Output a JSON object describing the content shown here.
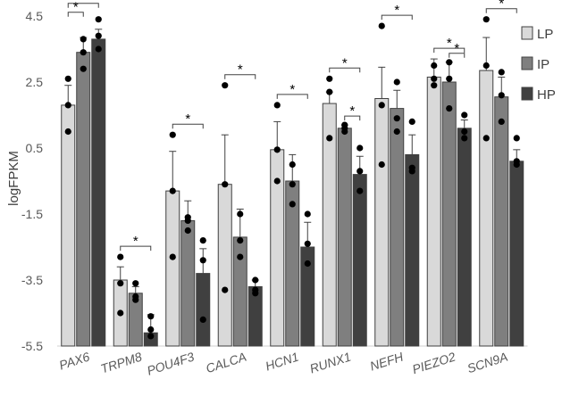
{
  "chart_data": {
    "type": "bar",
    "title": "",
    "xlabel": "",
    "ylabel": "logFPKM",
    "ylim": [
      -5.5,
      4.5
    ],
    "yticks": [
      "4.5",
      "2.5",
      "0.5",
      "-1.5",
      "-3.5",
      "-5.5"
    ],
    "ytick_values": [
      4.5,
      2.5,
      0.5,
      -1.5,
      -3.5,
      -5.5
    ],
    "grid": false,
    "legend_position": "right",
    "categories": [
      "PAX6",
      "TRPM8",
      "POU4F3",
      "CALCA",
      "HCN1",
      "RUNX1",
      "NEFH",
      "PIEZO2",
      "SCN9A"
    ],
    "series": [
      {
        "name": "LP",
        "color": "#d9d9d9",
        "values": [
          1.8,
          -3.5,
          -0.8,
          -0.6,
          0.45,
          1.85,
          2.0,
          2.65,
          2.85
        ],
        "errors": [
          0.6,
          0.4,
          1.2,
          1.5,
          0.85,
          0.35,
          0.95,
          0.55,
          1.0
        ],
        "points": [
          [
            2.6,
            1.8,
            1.0
          ],
          [
            -2.8,
            -3.6,
            -4.5
          ],
          [
            0.9,
            -0.8,
            -2.8
          ],
          [
            2.4,
            -0.6,
            -3.8
          ],
          [
            1.8,
            0.45,
            -0.5
          ],
          [
            2.6,
            2.2,
            0.8
          ],
          [
            4.2,
            1.8,
            0.0
          ],
          [
            3.0,
            2.6,
            2.4
          ],
          [
            4.4,
            3.0,
            0.8
          ]
        ]
      },
      {
        "name": "IP",
        "color": "#7f7f7f",
        "values": [
          3.4,
          -3.9,
          -1.7,
          -2.2,
          -0.5,
          1.1,
          1.7,
          2.5,
          2.05
        ],
        "errors": [
          0.45,
          0.2,
          0.6,
          0.85,
          0.8,
          0.1,
          0.55,
          0.6,
          0.6
        ],
        "points": [
          [
            3.8,
            3.4,
            2.9
          ],
          [
            -3.6,
            -4.0,
            -4.1
          ],
          [
            -1.6,
            -1.7,
            -2.0
          ],
          [
            -1.5,
            -2.8,
            -2.3
          ],
          [
            0.0,
            -1.2,
            -0.6
          ],
          [
            1.2,
            1.1,
            1.0
          ],
          [
            2.5,
            1.4,
            1.0
          ],
          [
            3.1,
            2.6,
            1.7
          ],
          [
            2.8,
            2.1,
            1.3
          ]
        ]
      },
      {
        "name": "HP",
        "color": "#404040",
        "values": [
          3.8,
          -5.1,
          -3.3,
          -3.7,
          -2.5,
          -0.3,
          0.3,
          1.1,
          0.1
        ],
        "errors": [
          0.3,
          0.55,
          0.75,
          0.2,
          0.75,
          0.55,
          0.6,
          0.25,
          0.35
        ],
        "points": [
          [
            4.4,
            3.9,
            3.5
          ],
          [
            -4.6,
            -5.0,
            -5.2
          ],
          [
            -2.3,
            -2.9,
            -4.7
          ],
          [
            -3.5,
            -3.8,
            -3.9
          ],
          [
            -1.5,
            -2.4,
            -3.0
          ],
          [
            0.5,
            -0.2,
            -0.8
          ],
          [
            1.3,
            -0.1,
            -0.2
          ],
          [
            1.5,
            1.0,
            0.8
          ],
          [
            0.8,
            0.1,
            0.0
          ]
        ]
      }
    ],
    "significance": [
      {
        "category": 0,
        "from": 0,
        "to": 1,
        "label": "*"
      },
      {
        "category": 0,
        "from": 0,
        "to": 2,
        "label": "*"
      },
      {
        "category": 1,
        "from": 0,
        "to": 2,
        "label": "*"
      },
      {
        "category": 2,
        "from": 0,
        "to": 2,
        "label": "*"
      },
      {
        "category": 3,
        "from": 0,
        "to": 2,
        "label": "*"
      },
      {
        "category": 4,
        "from": 0,
        "to": 2,
        "label": "*"
      },
      {
        "category": 5,
        "from": 0,
        "to": 2,
        "label": "*"
      },
      {
        "category": 5,
        "from": 1,
        "to": 2,
        "label": "*"
      },
      {
        "category": 6,
        "from": 0,
        "to": 2,
        "label": "*"
      },
      {
        "category": 7,
        "from": 0,
        "to": 2,
        "label": "*"
      },
      {
        "category": 7,
        "from": 1,
        "to": 2,
        "label": "*"
      },
      {
        "category": 8,
        "from": 0,
        "to": 2,
        "label": "*"
      }
    ]
  }
}
